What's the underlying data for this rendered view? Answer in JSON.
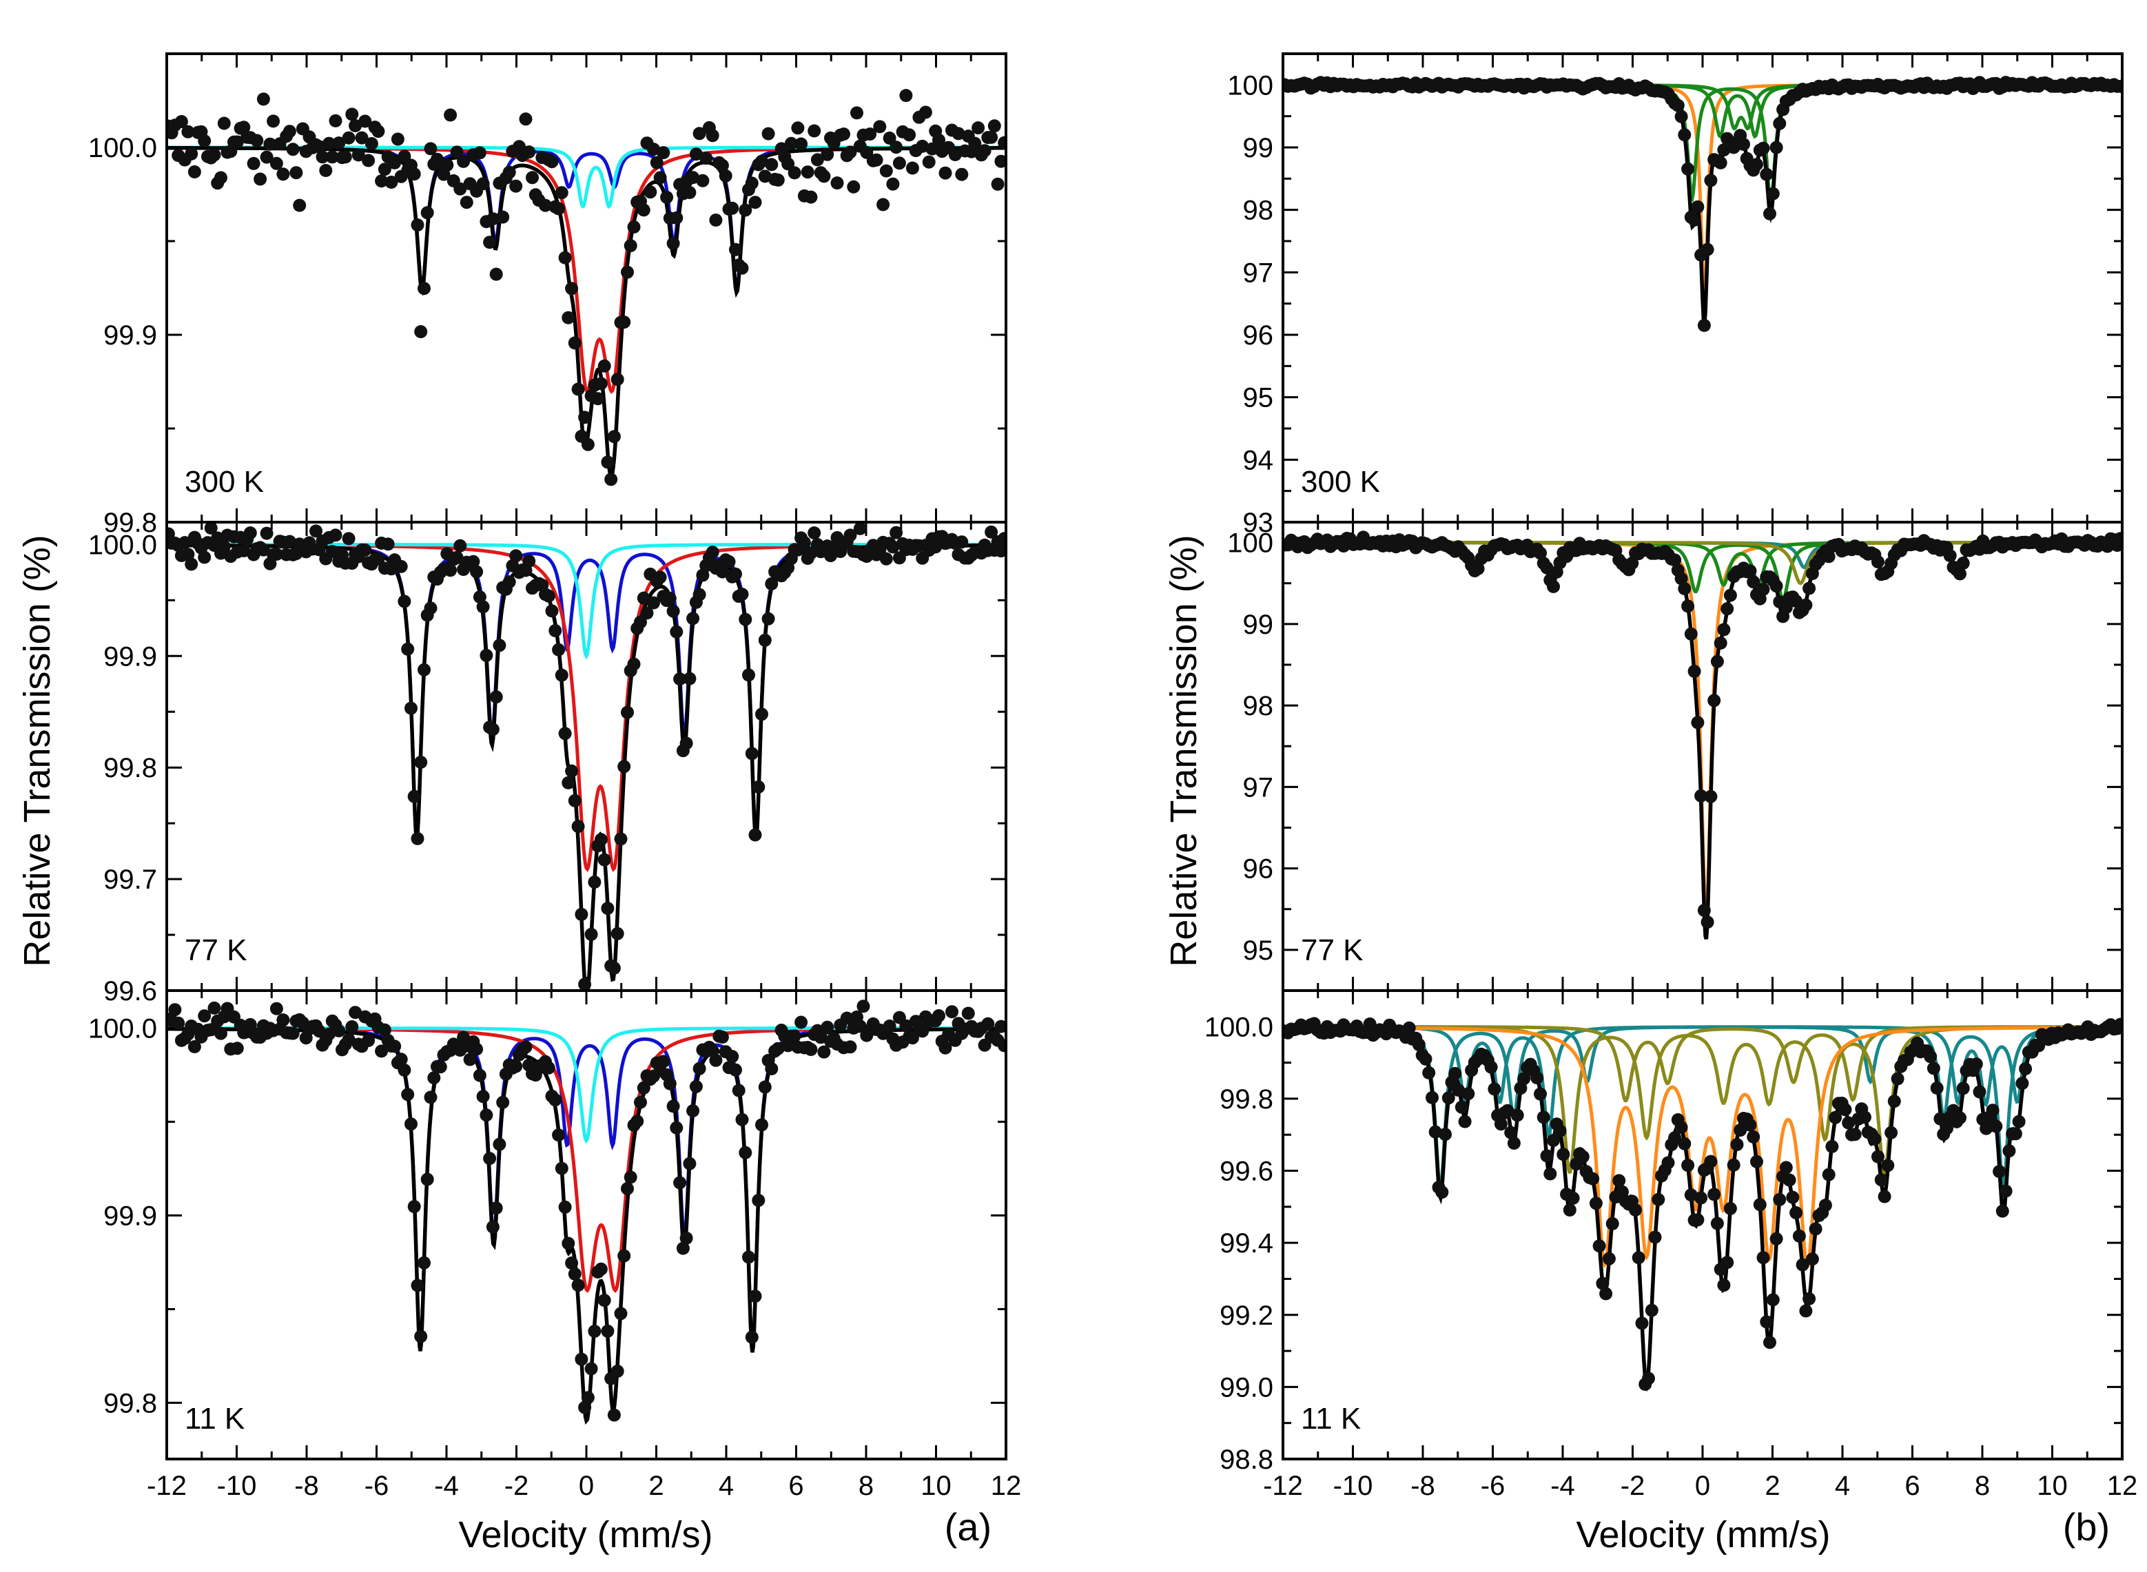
{
  "figure": {
    "xlabel": "Velocity (mm/s)",
    "ylabel": "Relative Transmission (%)",
    "xticks": [
      "-12",
      "-10",
      "-8",
      "-6",
      "-4",
      "-2",
      "0",
      "2",
      "4",
      "6",
      "8",
      "10",
      "12"
    ],
    "xrange": [
      -12,
      12
    ],
    "colors": {
      "data": "#111111",
      "fit": "#000000",
      "sextet_blue": "#1010d0",
      "doublet_red": "#e01818",
      "singlet_cyan": "#20f0f0",
      "green": "#1a8a1a",
      "orange": "#ff8c1a",
      "teal": "#16888c",
      "olive": "#8a8a1a"
    }
  },
  "chart_data": [
    {
      "type": "scatter",
      "panel_label": "(a)",
      "subplots": [
        {
          "temperature": "300 K",
          "ylim": [
            99.8,
            100.05
          ],
          "yticks": [
            "100.0",
            "99.9",
            "99.8"
          ],
          "scatter_noise": 0.022,
          "components": [
            {
              "name": "sextet",
              "color": "sextet_blue",
              "lines": [
                [
                  -4.7,
                  0.075
                ],
                [
                  -2.6,
                  0.05
                ],
                [
                  -0.5,
                  0.02
                ],
                [
                  0.8,
                  0.02
                ],
                [
                  2.5,
                  0.05
                ],
                [
                  4.3,
                  0.075
                ]
              ],
              "width": 0.35
            },
            {
              "name": "doublet",
              "color": "doublet_red",
              "lines": [
                [
                  0.0,
                  0.11
                ],
                [
                  0.75,
                  0.11
                ]
              ],
              "width": 0.7
            },
            {
              "name": "singlet",
              "color": "singlet_cyan",
              "lines": [
                [
                  -0.1,
                  0.03
                ],
                [
                  0.65,
                  0.03
                ]
              ],
              "width": 0.35
            }
          ]
        },
        {
          "temperature": "77 K",
          "ylim": [
            99.6,
            100.02
          ],
          "yticks": [
            "100.0",
            "99.9",
            "99.8",
            "99.7",
            "99.6"
          ],
          "scatter_noise": 0.014,
          "components": [
            {
              "name": "sextet",
              "color": "sextet_blue",
              "lines": [
                [
                  -4.85,
                  0.26
                ],
                [
                  -2.7,
                  0.17
                ],
                [
                  -0.55,
                  0.09
                ],
                [
                  0.75,
                  0.09
                ],
                [
                  2.8,
                  0.17
                ],
                [
                  4.85,
                  0.26
                ]
              ],
              "width": 0.35
            },
            {
              "name": "doublet",
              "color": "doublet_red",
              "lines": [
                [
                  0.0,
                  0.25
                ],
                [
                  0.8,
                  0.25
                ]
              ],
              "width": 0.7
            },
            {
              "name": "singlet",
              "color": "singlet_cyan",
              "lines": [
                [
                  0.0,
                  0.1
                ]
              ],
              "width": 0.4
            }
          ]
        },
        {
          "temperature": "11 K",
          "ylim": [
            99.77,
            100.02
          ],
          "yticks": [
            "100.0",
            "99.9",
            "99.8"
          ],
          "scatter_noise": 0.01,
          "components": [
            {
              "name": "sextet",
              "color": "sextet_blue",
              "lines": [
                [
                  -4.75,
                  0.17
                ],
                [
                  -2.65,
                  0.11
                ],
                [
                  -0.55,
                  0.06
                ],
                [
                  0.75,
                  0.06
                ],
                [
                  2.8,
                  0.11
                ],
                [
                  4.75,
                  0.17
                ]
              ],
              "width": 0.35
            },
            {
              "name": "doublet",
              "color": "doublet_red",
              "lines": [
                [
                  0.0,
                  0.12
                ],
                [
                  0.85,
                  0.12
                ]
              ],
              "width": 0.75
            },
            {
              "name": "singlet",
              "color": "singlet_cyan",
              "lines": [
                [
                  0.0,
                  0.06
                ]
              ],
              "width": 0.45
            }
          ]
        }
      ]
    },
    {
      "type": "scatter",
      "panel_label": "(b)",
      "subplots": [
        {
          "temperature": "300 K",
          "ylim": [
            93,
            100.5
          ],
          "yticks": [
            "100",
            "99",
            "98",
            "97",
            "96",
            "95",
            "94",
            "93"
          ],
          "scatter_noise": 0.04,
          "components": [
            {
              "name": "singlet",
              "color": "orange",
              "lines": [
                [
                  0.05,
                  3.4
                ]
              ],
              "width": 0.25
            },
            {
              "name": "green_1",
              "color": "green",
              "lines": [
                [
                  -0.3,
                  1.8
                ],
                [
                  1.95,
                  1.9
                ]
              ],
              "width": 0.3
            },
            {
              "name": "green_2",
              "color": "green",
              "lines": [
                [
                  0.5,
                  0.8
                ],
                [
                  1.5,
                  0.8
                ]
              ],
              "width": 0.35
            },
            {
              "name": "green_3",
              "color": "green",
              "lines": [
                [
                  0.9,
                  0.6
                ],
                [
                  1.3,
                  0.6
                ]
              ],
              "width": 0.35
            }
          ]
        },
        {
          "temperature": "77 K",
          "ylim": [
            94.5,
            100.25
          ],
          "yticks": [
            "100",
            "99",
            "98",
            "97",
            "96",
            "95"
          ],
          "scatter_noise": 0.06,
          "components": [
            {
              "name": "singlet",
              "color": "orange",
              "lines": [
                [
                  0.1,
                  4.6
                ]
              ],
              "width": 0.35
            },
            {
              "name": "teal_sextet",
              "color": "teal",
              "lines": [
                [
                  -6.5,
                  0.35
                ],
                [
                  -4.3,
                  0.5
                ],
                [
                  -2.2,
                  0.3
                ],
                [
                  2.9,
                  0.3
                ],
                [
                  5.2,
                  0.4
                ],
                [
                  7.3,
                  0.35
                ]
              ],
              "width": 0.4
            },
            {
              "name": "green_1",
              "color": "green",
              "lines": [
                [
                  -0.2,
                  0.6
                ],
                [
                  2.3,
                  0.7
                ]
              ],
              "width": 0.4
            },
            {
              "name": "green_2",
              "color": "green",
              "lines": [
                [
                  0.6,
                  0.5
                ],
                [
                  1.6,
                  0.5
                ]
              ],
              "width": 0.4
            },
            {
              "name": "olive_1",
              "color": "olive",
              "lines": [
                [
                  2.8,
                  0.5
                ]
              ],
              "width": 0.5
            }
          ]
        },
        {
          "temperature": "11 K",
          "ylim": [
            98.8,
            100.1
          ],
          "yticks": [
            "100.0",
            "99.8",
            "99.6",
            "99.4",
            "99.2",
            "99.0",
            "98.8"
          ],
          "scatter_noise": 0.018,
          "components": [
            {
              "name": "teal_a",
              "color": "teal",
              "lines": [
                [
                  -7.5,
                  0.45
                ],
                [
                  -5.4,
                  0.25
                ],
                [
                  -3.3,
                  0.15
                ],
                [
                  4.8,
                  0.15
                ],
                [
                  6.9,
                  0.25
                ],
                [
                  8.6,
                  0.45
                ]
              ],
              "width": 0.35
            },
            {
              "name": "teal_b",
              "color": "teal",
              "lines": [
                [
                  -6.8,
                  0.2
                ],
                [
                  -5.8,
                  0.2
                ],
                [
                  -4.4,
                  0.3
                ],
                [
                  7.3,
                  0.2
                ],
                [
                  8.1,
                  0.2
                ],
                [
                  9.0,
                  0.2
                ]
              ],
              "width": 0.35
            },
            {
              "name": "olive_a",
              "color": "olive",
              "lines": [
                [
                  -3.8,
                  0.4
                ],
                [
                  -1.6,
                  0.3
                ],
                [
                  0.6,
                  0.2
                ],
                [
                  1.9,
                  0.2
                ],
                [
                  3.5,
                  0.3
                ],
                [
                  5.2,
                  0.4
                ]
              ],
              "width": 0.45
            },
            {
              "name": "olive_b",
              "color": "olive",
              "lines": [
                [
                  -2.2,
                  0.2
                ],
                [
                  -1.0,
                  0.15
                ],
                [
                  2.6,
                  0.15
                ],
                [
                  4.3,
                  0.2
                ]
              ],
              "width": 0.45
            },
            {
              "name": "orange_sextet",
              "color": "orange",
              "lines": [
                [
                  -2.8,
                  0.62
                ],
                [
                  -1.6,
                  0.58
                ],
                [
                  -0.2,
                  0.42
                ],
                [
                  0.6,
                  0.42
                ],
                [
                  1.9,
                  0.58
                ],
                [
                  3.0,
                  0.62
                ]
              ],
              "width": 0.55
            }
          ]
        }
      ]
    }
  ]
}
